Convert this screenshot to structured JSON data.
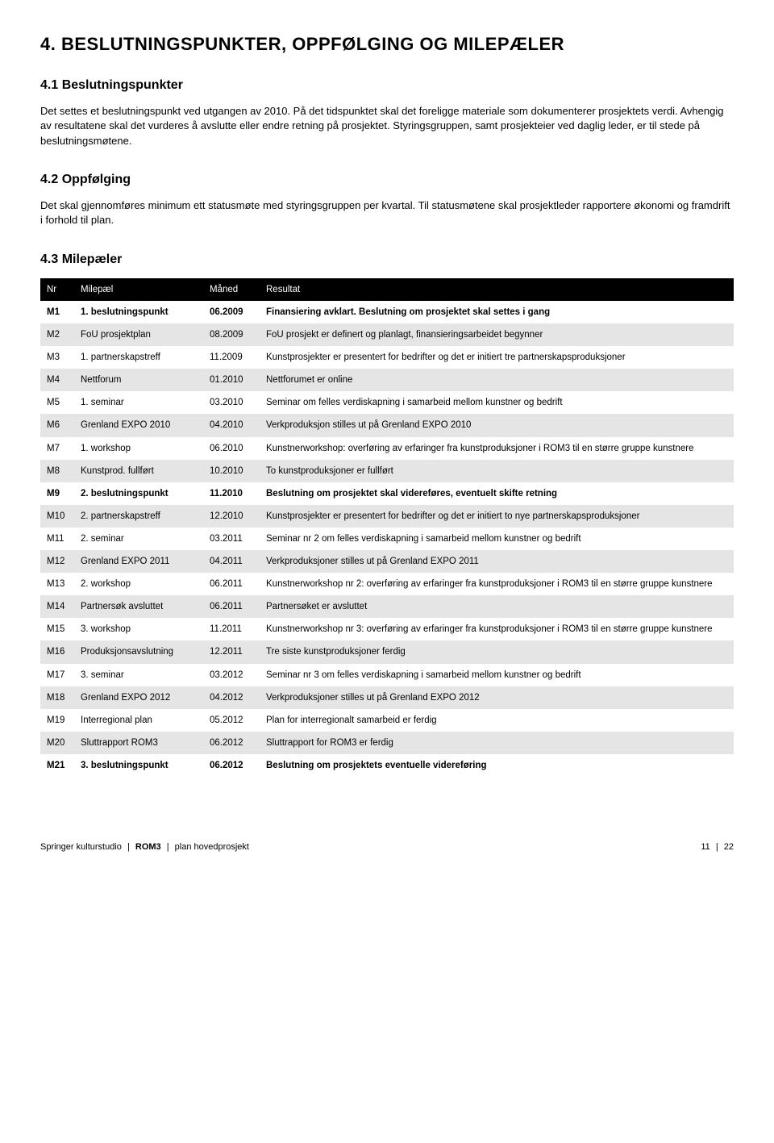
{
  "h1": "4. BESLUTNINGSPUNKTER, OPPFØLGING OG MILEPÆLER",
  "s41": {
    "title": "4.1 Beslutningspunkter",
    "p1": "Det settes et beslutningspunkt ved utgangen av 2010. På det tidspunktet skal det foreligge materiale som dokumenterer prosjektets verdi. Avhengig av resultatene skal det vurderes å avslutte eller endre retning på prosjektet. Styringsgruppen, samt prosjekteier ved daglig leder, er til stede på beslutningsmøtene."
  },
  "s42": {
    "title": "4.2 Oppfølging",
    "p1": "Det skal gjennomføres minimum ett statusmøte med styringsgruppen per kvartal. Til statusmøtene skal prosjektleder rapportere økonomi og framdrift i forhold til plan."
  },
  "s43": {
    "title": "4.3 Milepæler",
    "columns": {
      "nr": "Nr",
      "milepael": "Milepæl",
      "maned": "Måned",
      "resultat": "Resultat"
    },
    "rows": [
      {
        "nr": "M1",
        "milepael": "1. beslutningspunkt",
        "maned": "06.2009",
        "resultat": "Finansiering avklart. Beslutning om prosjektet skal settes i gang",
        "bold": true,
        "shaded": false
      },
      {
        "nr": "M2",
        "milepael": "FoU prosjektplan",
        "maned": "08.2009",
        "resultat": "FoU prosjekt er definert og planlagt, finansieringsarbeidet begynner",
        "bold": false,
        "shaded": true
      },
      {
        "nr": "M3",
        "milepael": "1. partnerskapstreff",
        "maned": "11.2009",
        "resultat": "Kunstprosjekter er presentert for bedrifter og det er initiert tre partnerskapsproduksjoner",
        "bold": false,
        "shaded": false
      },
      {
        "nr": "M4",
        "milepael": "Nettforum",
        "maned": "01.2010",
        "resultat": "Nettforumet er online",
        "bold": false,
        "shaded": true
      },
      {
        "nr": "M5",
        "milepael": "1. seminar",
        "maned": "03.2010",
        "resultat": "Seminar om felles verdiskapning i samarbeid mellom kunstner og bedrift",
        "bold": false,
        "shaded": false
      },
      {
        "nr": "M6",
        "milepael": "Grenland EXPO 2010",
        "maned": "04.2010",
        "resultat": "Verkproduksjon stilles ut på Grenland EXPO 2010",
        "bold": false,
        "shaded": true
      },
      {
        "nr": "M7",
        "milepael": "1. workshop",
        "maned": "06.2010",
        "resultat": "Kunstnerworkshop: overføring av erfaringer fra kunstproduksjoner i ROM3 til en større gruppe kunstnere",
        "bold": false,
        "shaded": false
      },
      {
        "nr": "M8",
        "milepael": "Kunstprod. fullført",
        "maned": "10.2010",
        "resultat": "To kunstproduksjoner er fullført",
        "bold": false,
        "shaded": true
      },
      {
        "nr": "M9",
        "milepael": "2. beslutningspunkt",
        "maned": "11.2010",
        "resultat": "Beslutning om prosjektet skal videreføres, eventuelt skifte retning",
        "bold": true,
        "shaded": false
      },
      {
        "nr": "M10",
        "milepael": "2. partnerskapstreff",
        "maned": "12.2010",
        "resultat": "Kunstprosjekter er presentert for bedrifter og det er initiert to nye partnerskapsproduksjoner",
        "bold": false,
        "shaded": true
      },
      {
        "nr": "M11",
        "milepael": "2. seminar",
        "maned": "03.2011",
        "resultat": "Seminar nr 2 om felles verdiskapning i samarbeid mellom kunstner og bedrift",
        "bold": false,
        "shaded": false
      },
      {
        "nr": "M12",
        "milepael": "Grenland EXPO 2011",
        "maned": "04.2011",
        "resultat": "Verkproduksjoner stilles ut på Grenland EXPO 2011",
        "bold": false,
        "shaded": true
      },
      {
        "nr": "M13",
        "milepael": "2. workshop",
        "maned": "06.2011",
        "resultat": "Kunstnerworkshop nr 2: overføring av erfaringer fra kunstproduksjoner i ROM3 til en større gruppe kunstnere",
        "bold": false,
        "shaded": false
      },
      {
        "nr": "M14",
        "milepael": "Partnersøk avsluttet",
        "maned": "06.2011",
        "resultat": "Partnersøket er avsluttet",
        "bold": false,
        "shaded": true
      },
      {
        "nr": "M15",
        "milepael": "3. workshop",
        "maned": "11.2011",
        "resultat": "Kunstnerworkshop nr 3: overføring av erfaringer fra kunstproduksjoner i ROM3 til en større gruppe kunstnere",
        "bold": false,
        "shaded": false
      },
      {
        "nr": "M16",
        "milepael": "Produksjonsavslutning",
        "maned": "12.2011",
        "resultat": "Tre siste kunstproduksjoner ferdig",
        "bold": false,
        "shaded": true
      },
      {
        "nr": "M17",
        "milepael": "3. seminar",
        "maned": "03.2012",
        "resultat": "Seminar nr 3 om felles verdiskapning i samarbeid mellom kunstner og bedrift",
        "bold": false,
        "shaded": false
      },
      {
        "nr": "M18",
        "milepael": "Grenland EXPO 2012",
        "maned": "04.2012",
        "resultat": "Verkproduksjoner stilles ut på Grenland EXPO 2012",
        "bold": false,
        "shaded": true
      },
      {
        "nr": "M19",
        "milepael": "Interregional plan",
        "maned": "05.2012",
        "resultat": "Plan for interregionalt samarbeid er ferdig",
        "bold": false,
        "shaded": false
      },
      {
        "nr": "M20",
        "milepael": "Sluttrapport ROM3",
        "maned": "06.2012",
        "resultat": "Sluttrapport for ROM3 er ferdig",
        "bold": false,
        "shaded": true
      },
      {
        "nr": "M21",
        "milepael": "3. beslutningspunkt",
        "maned": "06.2012",
        "resultat": "Beslutning om prosjektets eventuelle videreføring",
        "bold": true,
        "shaded": false
      }
    ]
  },
  "footer": {
    "left1": "Springer kulturstudio",
    "left2": "ROM3",
    "left3": "plan hovedprosjekt",
    "right_cur": "11",
    "right_total": "22"
  }
}
